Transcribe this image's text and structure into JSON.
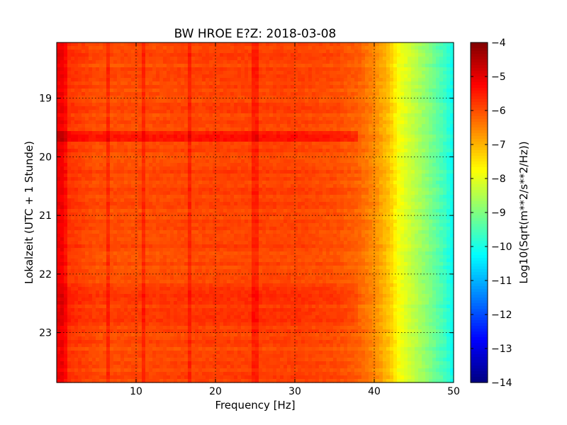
{
  "chart_data": {
    "type": "heatmap",
    "title": "BW HROE E?Z: 2018-03-08",
    "xlabel": "Frequency [Hz]",
    "ylabel": "Lokalzeit (UTC + 1 Stunde)",
    "xlim": [
      0,
      50
    ],
    "ylim": [
      18.05,
      23.85
    ],
    "x_ticks": [
      "10",
      "20",
      "30",
      "40",
      "50"
    ],
    "y_ticks": [
      "19",
      "20",
      "21",
      "22",
      "23"
    ],
    "grid": true,
    "colorbar": {
      "label": "Log10(Sqrt(m**2/s**2/Hz))",
      "range": [
        -14,
        -4
      ],
      "ticks": [
        "−4",
        "−5",
        "−6",
        "−7",
        "−8",
        "−9",
        "−10",
        "−11",
        "−12",
        "−13",
        "−14"
      ],
      "colormap": "jet"
    },
    "background_level": -6.0,
    "frequency_profile": {
      "x": [
        0,
        1,
        5,
        10,
        20,
        30,
        35,
        38,
        40,
        42,
        43,
        45,
        47,
        49,
        50
      ],
      "values": [
        -5.0,
        -5.7,
        -6.0,
        -6.0,
        -5.9,
        -5.9,
        -6.0,
        -6.2,
        -6.6,
        -7.2,
        -7.8,
        -8.4,
        -9.0,
        -9.7,
        -10.2
      ]
    },
    "spectral_lines_hz": [
      1.0,
      6.5,
      11.0,
      16.7,
      25.0
    ],
    "strong_time_band": [
      19.55,
      19.75
    ],
    "elevated_time_band": [
      22.2,
      22.9
    ]
  }
}
